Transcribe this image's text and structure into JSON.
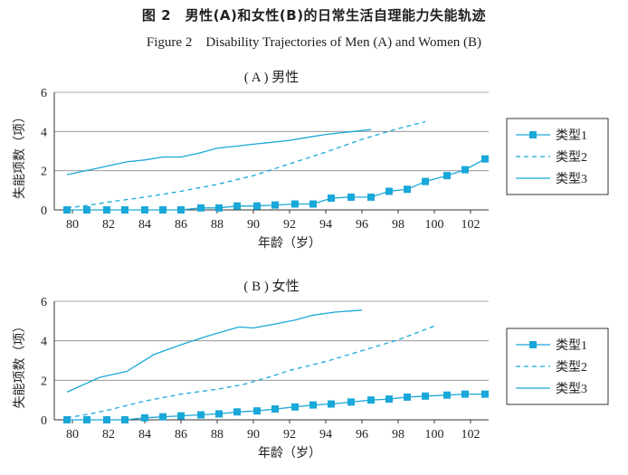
{
  "figure": {
    "title_zh": "图 2　男性(A)和女性(B)的日常生活自理能力失能轨迹",
    "title_en": "Figure 2　Disability Trajectories of Men (A) and Women (B)"
  },
  "colors": {
    "series": "#1aa8d8",
    "grid": "#8a8a8a",
    "text": "#231f20"
  },
  "chart_data": [
    {
      "type": "line",
      "title": "( A ) 男性",
      "xlabel": "年龄（岁）",
      "ylabel": "失能项数（项）",
      "xlim": [
        79,
        103
      ],
      "ylim": [
        0,
        6
      ],
      "xticks": [
        80,
        82,
        84,
        86,
        88,
        90,
        92,
        94,
        96,
        98,
        100,
        102
      ],
      "yticks": [
        0,
        2,
        4,
        6
      ],
      "grid": "horizontal",
      "legend": "right",
      "series": [
        {
          "name": "类型1",
          "style": "solid-square-markers",
          "x": [
            79.7,
            80.8,
            81.9,
            82.9,
            84.0,
            85.0,
            86.0,
            87.1,
            88.1,
            89.1,
            90.2,
            91.2,
            92.3,
            93.3,
            94.3,
            95.4,
            96.5,
            97.5,
            98.5,
            99.5,
            100.7,
            101.7,
            102.8
          ],
          "y": [
            0.0,
            0.0,
            0.0,
            0.0,
            0.0,
            0.0,
            0.0,
            0.1,
            0.1,
            0.2,
            0.2,
            0.25,
            0.3,
            0.3,
            0.6,
            0.65,
            0.65,
            0.95,
            1.05,
            1.45,
            1.75,
            2.05,
            2.6
          ]
        },
        {
          "name": "类型2",
          "style": "dashed",
          "x": [
            79.7,
            81,
            82,
            84,
            86,
            88,
            90,
            92,
            94,
            96,
            98,
            99.5
          ],
          "y": [
            0.1,
            0.25,
            0.4,
            0.65,
            0.95,
            1.3,
            1.75,
            2.35,
            2.95,
            3.6,
            4.15,
            4.5
          ]
        },
        {
          "name": "类型3",
          "style": "solid",
          "x": [
            79.7,
            81,
            82,
            83,
            84,
            85,
            86,
            87,
            88,
            89,
            90,
            91,
            92,
            93,
            94,
            95,
            96.5
          ],
          "y": [
            1.8,
            2.05,
            2.25,
            2.45,
            2.55,
            2.7,
            2.7,
            2.9,
            3.15,
            3.25,
            3.35,
            3.45,
            3.55,
            3.7,
            3.85,
            3.95,
            4.1
          ]
        }
      ]
    },
    {
      "type": "line",
      "title": "( B ) 女性",
      "xlabel": "年龄（岁）",
      "ylabel": "失能项数（项）",
      "xlim": [
        79,
        103
      ],
      "ylim": [
        0,
        6
      ],
      "xticks": [
        80,
        82,
        84,
        86,
        88,
        90,
        92,
        94,
        96,
        98,
        100,
        102
      ],
      "yticks": [
        0,
        2,
        4,
        6
      ],
      "grid": "horizontal",
      "legend": "right",
      "series": [
        {
          "name": "类型1",
          "style": "solid-square-markers",
          "x": [
            79.7,
            80.8,
            81.9,
            82.9,
            84.0,
            85.0,
            86.0,
            87.1,
            88.1,
            89.1,
            90.2,
            91.2,
            92.3,
            93.3,
            94.3,
            95.4,
            96.5,
            97.5,
            98.5,
            99.5,
            100.7,
            101.7,
            102.8
          ],
          "y": [
            0.0,
            0.0,
            0.0,
            0.0,
            0.1,
            0.15,
            0.2,
            0.25,
            0.3,
            0.4,
            0.45,
            0.55,
            0.65,
            0.75,
            0.8,
            0.9,
            1.0,
            1.05,
            1.15,
            1.2,
            1.25,
            1.3,
            1.3
          ]
        },
        {
          "name": "类型2",
          "style": "dashed",
          "x": [
            79.7,
            81,
            82,
            84,
            86,
            88,
            89.5,
            91,
            92,
            94,
            96,
            98,
            100
          ],
          "y": [
            0.1,
            0.3,
            0.5,
            0.95,
            1.3,
            1.55,
            1.8,
            2.2,
            2.5,
            2.95,
            3.5,
            4.05,
            4.75
          ]
        },
        {
          "name": "类型3",
          "style": "solid",
          "x": [
            79.7,
            81.5,
            83,
            84.5,
            86,
            87.5,
            89.2,
            90,
            91.2,
            92.3,
            93.3,
            94.5,
            96
          ],
          "y": [
            1.4,
            2.15,
            2.45,
            3.3,
            3.8,
            4.25,
            4.7,
            4.65,
            4.85,
            5.05,
            5.3,
            5.45,
            5.55
          ]
        }
      ]
    }
  ]
}
